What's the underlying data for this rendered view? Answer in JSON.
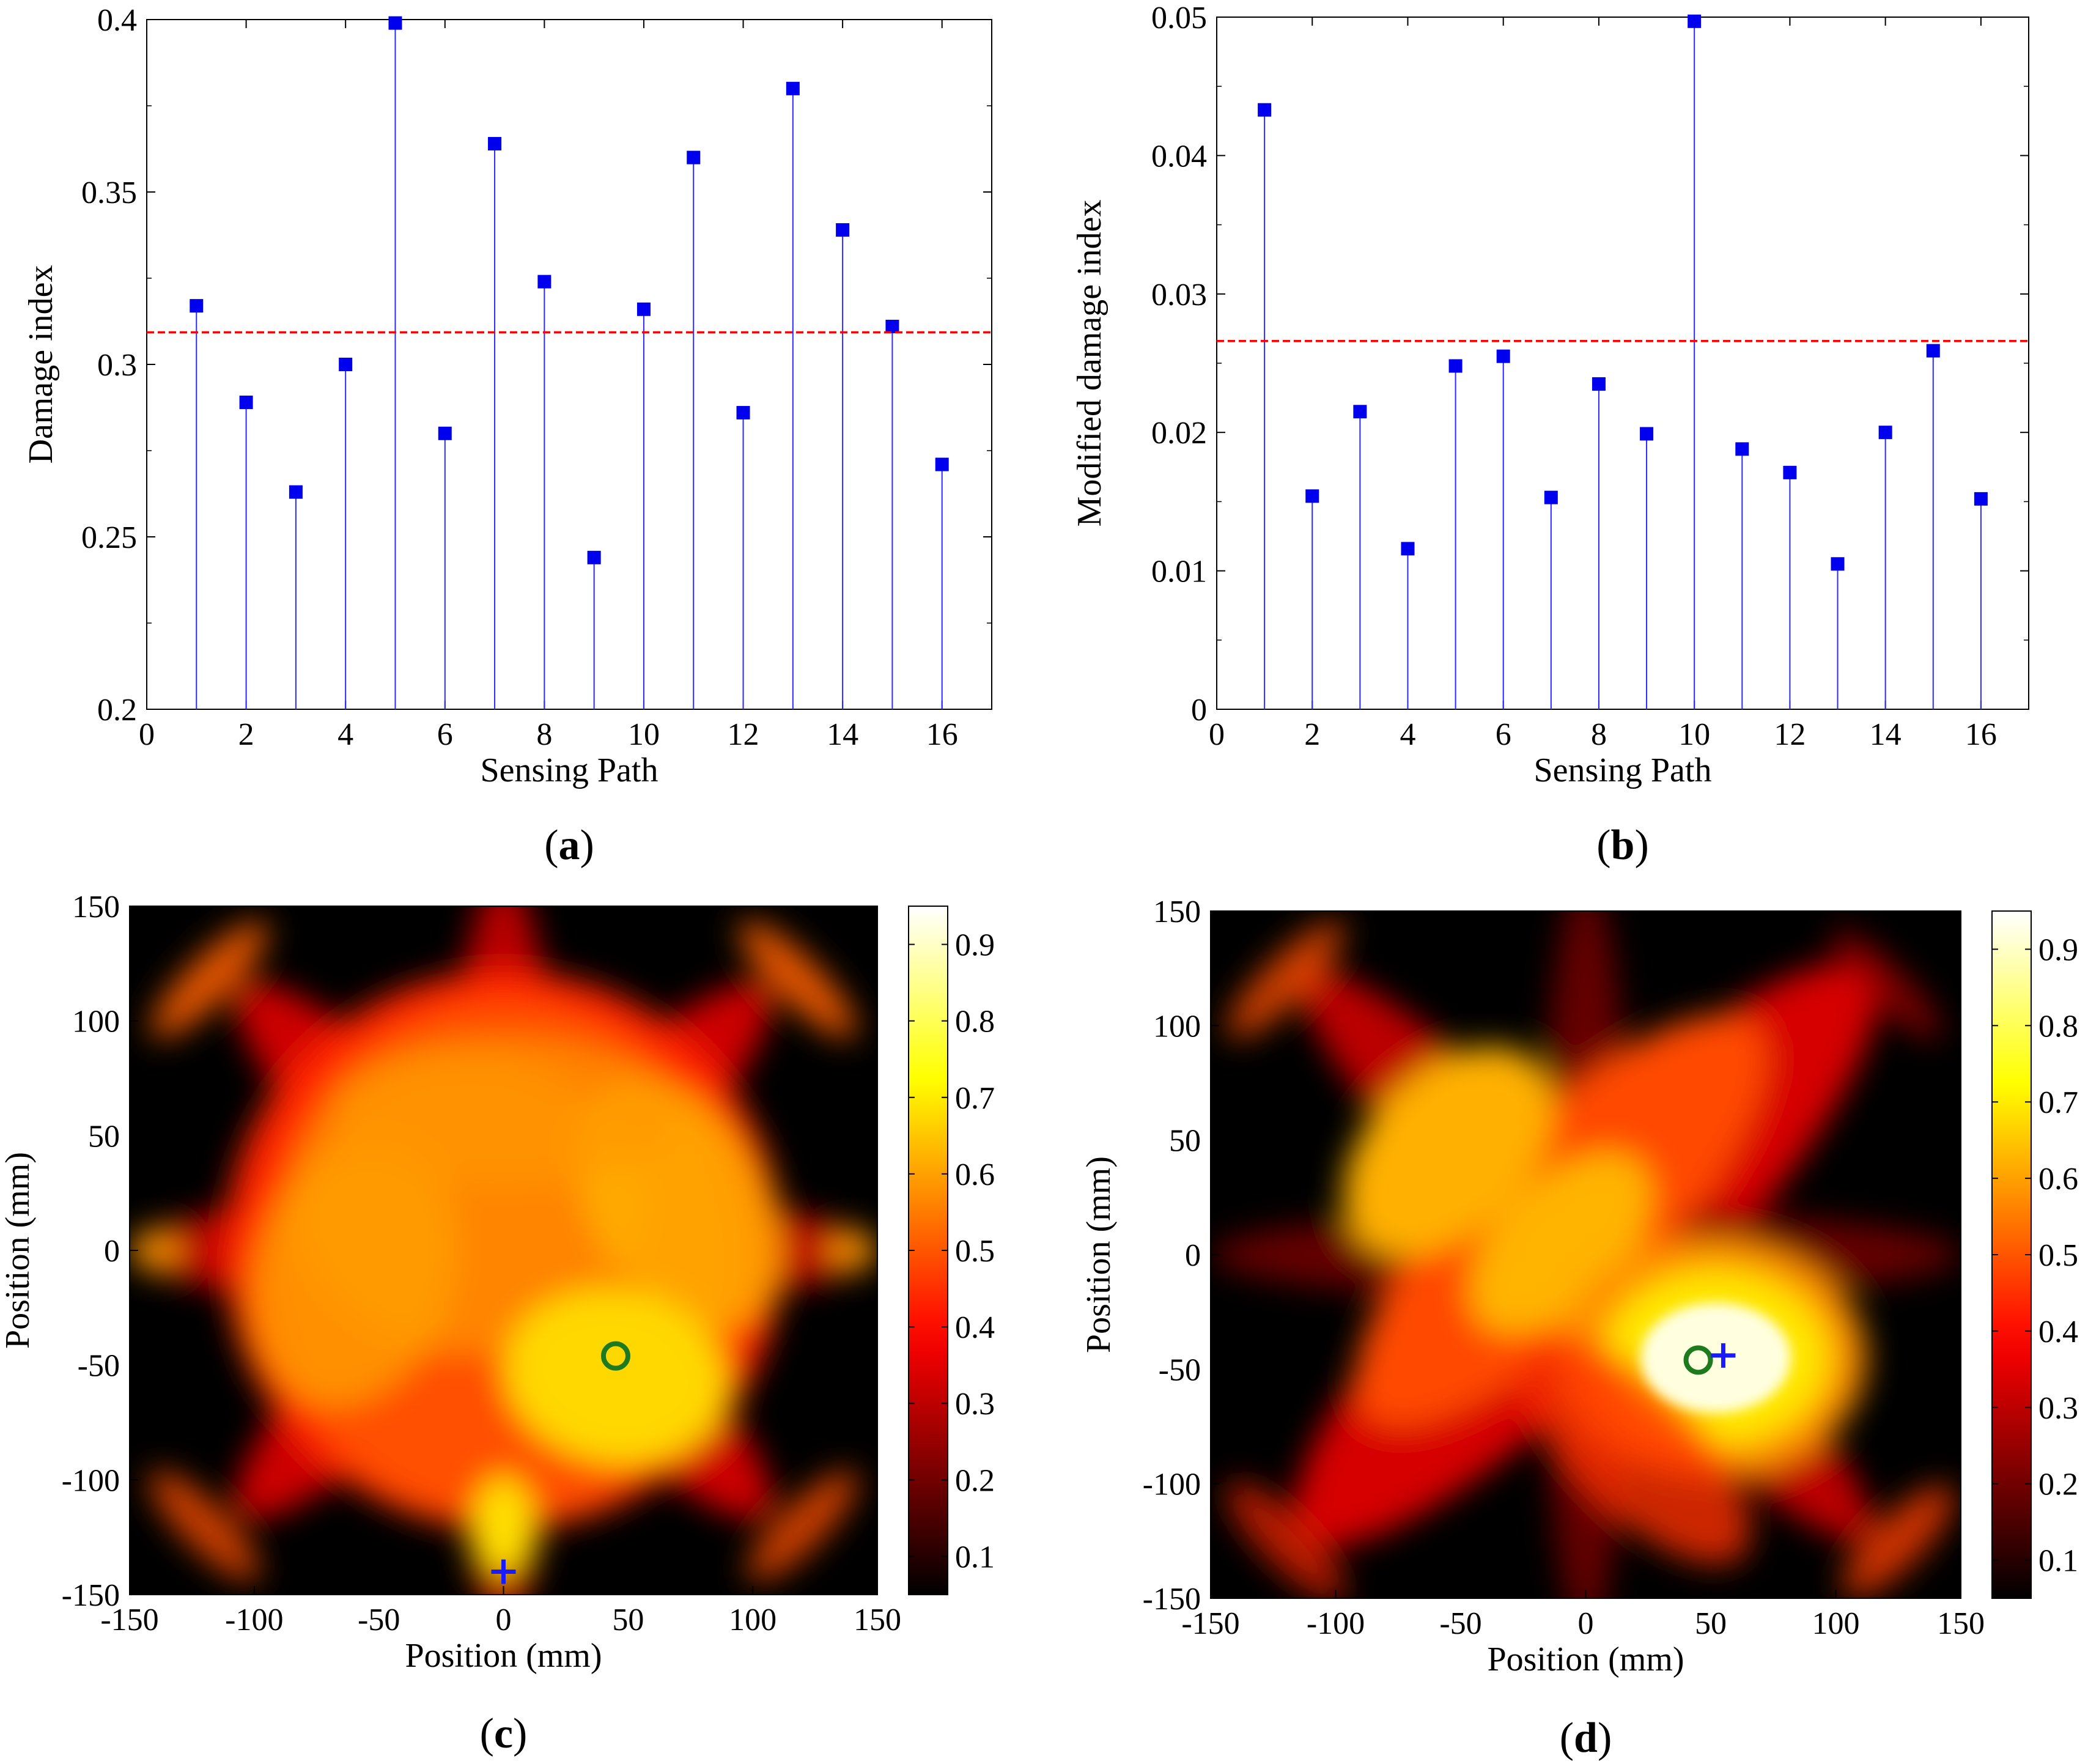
{
  "colors": {
    "stem": "#2b2bff",
    "marker": "#0000ee",
    "threshold": "#ff0000",
    "circle": "#1e7a1e",
    "cross": "#1a1aff",
    "colormap": "hot"
  },
  "chart_data": [
    {
      "id": "a",
      "type": "stem",
      "panel_label": "(a)",
      "label_letter": "a",
      "xlabel": "Sensing Path",
      "ylabel": "Damage index",
      "xlim": [
        0,
        17
      ],
      "ylim": [
        0.2,
        0.4
      ],
      "xticks": [
        0,
        2,
        4,
        6,
        8,
        10,
        12,
        14,
        16
      ],
      "yticks": [
        0.2,
        0.25,
        0.3,
        0.35,
        0.4
      ],
      "ytick_labels": [
        "0.2",
        "0.25",
        "0.3",
        "0.35",
        "0.4"
      ],
      "x": [
        1,
        2,
        3,
        4,
        5,
        6,
        7,
        8,
        9,
        10,
        11,
        12,
        13,
        14,
        15,
        16
      ],
      "values": [
        0.317,
        0.289,
        0.263,
        0.3,
        0.399,
        0.28,
        0.364,
        0.324,
        0.244,
        0.316,
        0.36,
        0.286,
        0.38,
        0.339,
        0.311,
        0.271
      ],
      "threshold": 0.3093
    },
    {
      "id": "b",
      "type": "stem",
      "panel_label": "(b)",
      "label_letter": "b",
      "xlabel": "Sensing Path",
      "ylabel": "Modified damage index",
      "xlim": [
        0,
        17
      ],
      "ylim": [
        0,
        0.05
      ],
      "xticks": [
        0,
        2,
        4,
        6,
        8,
        10,
        12,
        14,
        16
      ],
      "yticks": [
        0,
        0.01,
        0.02,
        0.03,
        0.04,
        0.05
      ],
      "ytick_labels": [
        "0",
        "0.01",
        "0.02",
        "0.03",
        "0.04",
        "0.05"
      ],
      "x": [
        1,
        2,
        3,
        4,
        5,
        6,
        7,
        8,
        9,
        10,
        11,
        12,
        13,
        14,
        15,
        16
      ],
      "values": [
        0.0433,
        0.0154,
        0.0215,
        0.0116,
        0.0248,
        0.0255,
        0.0153,
        0.0235,
        0.0199,
        0.0497,
        0.0188,
        0.0171,
        0.0105,
        0.02,
        0.0259,
        0.0152
      ],
      "threshold": 0.0266
    },
    {
      "id": "c",
      "type": "heatmap",
      "panel_label": "(c)",
      "label_letter": "c",
      "xlabel": "Position (mm)",
      "ylabel": "Position (mm)",
      "xlim": [
        -150,
        150
      ],
      "ylim": [
        -150,
        150
      ],
      "xticks": [
        -150,
        -100,
        -50,
        0,
        50,
        100,
        150
      ],
      "yticks": [
        -150,
        -100,
        -50,
        0,
        50,
        100,
        150
      ],
      "colorbar_ticks": [
        0.1,
        0.2,
        0.3,
        0.4,
        0.5,
        0.6,
        0.7,
        0.8,
        0.9
      ],
      "colorbar_tick_labels": [
        "0.1",
        "0.2",
        "0.3",
        "0.4",
        "0.5",
        "0.6",
        "0.7",
        "0.8",
        "0.9"
      ],
      "colorbar_range": [
        0.05,
        0.95
      ],
      "actual_damage_circle": [
        45,
        -46
      ],
      "predicted_damage_cross": [
        0,
        -140
      ]
    },
    {
      "id": "d",
      "type": "heatmap",
      "panel_label": "(d)",
      "label_letter": "d",
      "xlabel": "Position (mm)",
      "ylabel": "Position (mm)",
      "xlim": [
        -150,
        150
      ],
      "ylim": [
        -150,
        150
      ],
      "xticks": [
        -150,
        -100,
        -50,
        0,
        50,
        100,
        150
      ],
      "yticks": [
        -150,
        -100,
        -50,
        0,
        50,
        100,
        150
      ],
      "colorbar_ticks": [
        0.1,
        0.2,
        0.3,
        0.4,
        0.5,
        0.6,
        0.7,
        0.8,
        0.9
      ],
      "colorbar_tick_labels": [
        "0.1",
        "0.2",
        "0.3",
        "0.4",
        "0.5",
        "0.6",
        "0.7",
        "0.8",
        "0.9"
      ],
      "colorbar_range": [
        0.05,
        0.95
      ],
      "actual_damage_circle": [
        45,
        -46
      ],
      "predicted_damage_cross": [
        55,
        -44
      ]
    }
  ]
}
